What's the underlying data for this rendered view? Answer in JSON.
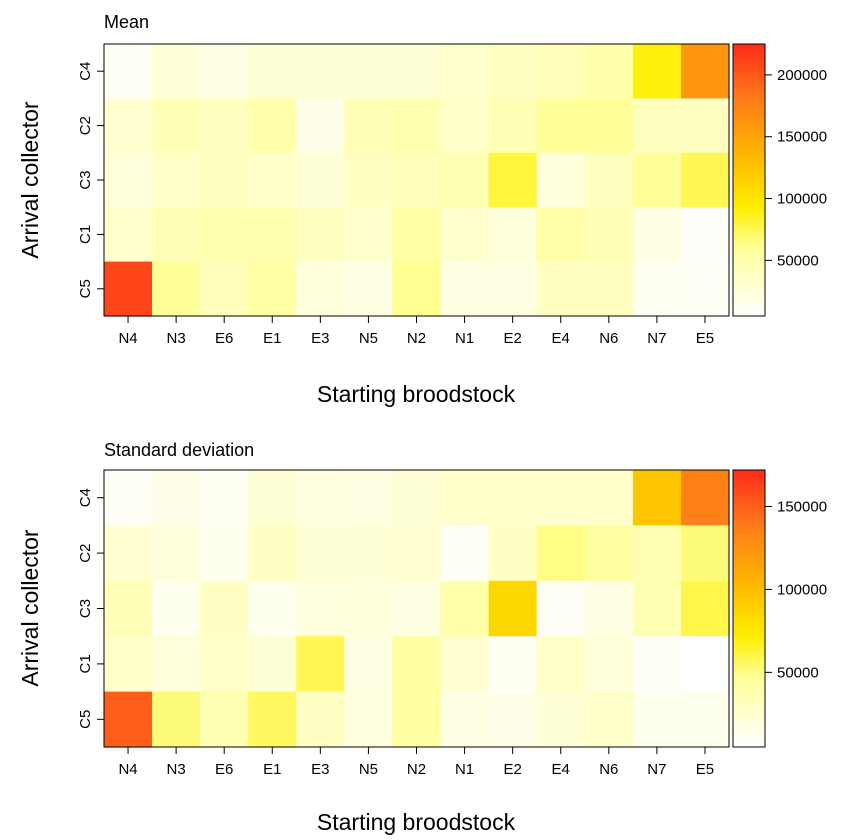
{
  "chart_data": [
    {
      "type": "heatmap",
      "title": "Mean",
      "xlabel": "Starting broodstock",
      "ylabel": "Arrival collector",
      "x_categories": [
        "N4",
        "N3",
        "E6",
        "E1",
        "E3",
        "N5",
        "N2",
        "N1",
        "E2",
        "E4",
        "N6",
        "N7",
        "E5"
      ],
      "y_categories": [
        "C4",
        "C2",
        "C3",
        "C1",
        "C5"
      ],
      "values": [
        [
          10000,
          26000,
          19000,
          28000,
          28000,
          28000,
          28000,
          32000,
          38000,
          42000,
          50000,
          90000,
          160000
        ],
        [
          30000,
          44000,
          40000,
          50000,
          18000,
          45000,
          48000,
          35000,
          45000,
          60000,
          60000,
          40000,
          40000
        ],
        [
          25000,
          35000,
          40000,
          35000,
          28000,
          38000,
          42000,
          47000,
          80000,
          25000,
          40000,
          60000,
          75000
        ],
        [
          32000,
          44000,
          48000,
          48000,
          40000,
          32000,
          55000,
          32000,
          24000,
          52000,
          45000,
          20000,
          8000
        ],
        [
          210000,
          60000,
          42000,
          55000,
          24000,
          20000,
          62000,
          20000,
          20000,
          38000,
          38000,
          12000,
          10000
        ]
      ],
      "colorbar_ticks": [
        50000,
        100000,
        150000,
        200000
      ],
      "colorbar_labels": [
        "50000",
        "100000",
        "150000",
        "200000"
      ],
      "colorbar_range": [
        5000,
        225000
      ]
    },
    {
      "type": "heatmap",
      "title": "Standard deviation",
      "xlabel": "Starting broodstock",
      "ylabel": "Arrival collector",
      "x_categories": [
        "N4",
        "N3",
        "E6",
        "E1",
        "E3",
        "N5",
        "N2",
        "N1",
        "E2",
        "E4",
        "N6",
        "N7",
        "E5"
      ],
      "y_categories": [
        "C4",
        "C2",
        "C3",
        "C1",
        "C5"
      ],
      "values": [
        [
          8000,
          14000,
          10000,
          22000,
          18000,
          16000,
          22000,
          26000,
          26000,
          26000,
          26000,
          95000,
          135000
        ],
        [
          24000,
          20000,
          12000,
          30000,
          22000,
          22000,
          24000,
          9000,
          30000,
          50000,
          44000,
          36000,
          52000
        ],
        [
          34000,
          12000,
          30000,
          12000,
          18000,
          20000,
          16000,
          40000,
          85000,
          8000,
          16000,
          36000,
          60000
        ],
        [
          26000,
          20000,
          28000,
          22000,
          58000,
          16000,
          44000,
          24000,
          10000,
          28000,
          20000,
          8000,
          6000
        ],
        [
          150000,
          52000,
          36000,
          56000,
          30000,
          18000,
          44000,
          16000,
          14000,
          22000,
          26000,
          12000,
          12000
        ]
      ],
      "colorbar_ticks": [
        50000,
        100000,
        150000
      ],
      "colorbar_labels": [
        "50000",
        "100000",
        "150000"
      ],
      "colorbar_range": [
        5000,
        172000
      ]
    }
  ]
}
